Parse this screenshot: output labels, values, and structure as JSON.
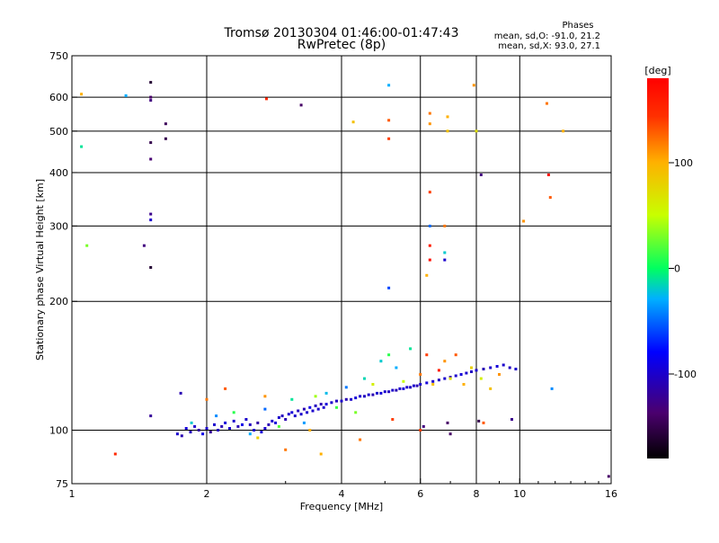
{
  "header": {
    "title_line1": "Tromsø 20130304 01:46:00-01:47:43",
    "title_line2": "RwPretec (8p)",
    "phases_title": "Phases",
    "phases_o": "mean, sd,O: -91.0, 21.2",
    "phases_x": "mean, sd,X:  93.0, 27.1"
  },
  "colorbar": {
    "label": "[deg]",
    "min": -180,
    "max": 180,
    "ticks": [
      {
        "value": 100,
        "label": "100"
      },
      {
        "value": 0,
        "label": "0"
      },
      {
        "value": -100,
        "label": "-100"
      }
    ]
  },
  "chart_data": {
    "type": "scatter",
    "xlabel": "Frequency [MHz]",
    "ylabel": "Stationary phase Virtual Height [km]",
    "xscale": "log",
    "yscale": "log",
    "xlim": [
      1,
      16
    ],
    "ylim": [
      75,
      750
    ],
    "grid": true,
    "x_ticks": [
      {
        "value": 1,
        "label": "1"
      },
      {
        "value": 2,
        "label": "2"
      },
      {
        "value": 4,
        "label": "4"
      },
      {
        "value": 6,
        "label": "6"
      },
      {
        "value": 8,
        "label": "8"
      },
      {
        "value": 10,
        "label": "10"
      },
      {
        "value": 16,
        "label": "16"
      }
    ],
    "y_ticks": [
      {
        "value": 75,
        "label": "75"
      },
      {
        "value": 100,
        "label": "100"
      },
      {
        "value": 200,
        "label": "200"
      },
      {
        "value": 300,
        "label": "300"
      },
      {
        "value": 400,
        "label": "400"
      },
      {
        "value": 500,
        "label": "500"
      },
      {
        "value": 600,
        "label": "600"
      },
      {
        "value": 750,
        "label": "750"
      }
    ],
    "points": [
      [
        1.72,
        98,
        -100
      ],
      [
        1.76,
        97,
        -110
      ],
      [
        1.8,
        101,
        -95
      ],
      [
        1.84,
        99,
        -105
      ],
      [
        1.88,
        102,
        -100
      ],
      [
        1.92,
        100,
        -115
      ],
      [
        1.96,
        98,
        -90
      ],
      [
        2.0,
        101,
        -100
      ],
      [
        2.04,
        99,
        -120
      ],
      [
        2.08,
        103,
        -100
      ],
      [
        2.12,
        100,
        -105
      ],
      [
        2.16,
        102,
        -110
      ],
      [
        2.2,
        104,
        -95
      ],
      [
        2.25,
        101,
        -100
      ],
      [
        2.3,
        105,
        -100
      ],
      [
        2.35,
        102,
        -110
      ],
      [
        2.4,
        103,
        -90
      ],
      [
        2.45,
        106,
        -100
      ],
      [
        2.5,
        103,
        -105
      ],
      [
        2.55,
        100,
        -100
      ],
      [
        2.6,
        104,
        -115
      ],
      [
        2.65,
        99,
        -95
      ],
      [
        2.7,
        101,
        -100
      ],
      [
        2.75,
        103,
        -110
      ],
      [
        2.8,
        105,
        -100
      ],
      [
        2.85,
        104,
        -95
      ],
      [
        2.9,
        107,
        -100
      ],
      [
        2.95,
        108,
        -105
      ],
      [
        3.0,
        106,
        -110
      ],
      [
        3.05,
        109,
        -100
      ],
      [
        3.1,
        110,
        -95
      ],
      [
        3.15,
        108,
        -100
      ],
      [
        3.2,
        111,
        -105
      ],
      [
        3.25,
        109,
        -100
      ],
      [
        3.3,
        112,
        -110
      ],
      [
        3.35,
        110,
        -100
      ],
      [
        3.4,
        113,
        -90
      ],
      [
        3.45,
        111,
        -100
      ],
      [
        3.5,
        114,
        -105
      ],
      [
        3.55,
        112,
        -100
      ],
      [
        3.6,
        115,
        -110
      ],
      [
        3.65,
        113,
        -100
      ],
      [
        3.7,
        115,
        -95
      ],
      [
        3.8,
        116,
        -100
      ],
      [
        3.9,
        117,
        -105
      ],
      [
        4.0,
        117,
        -100
      ],
      [
        4.1,
        118,
        -110
      ],
      [
        4.2,
        118,
        -100
      ],
      [
        4.3,
        119,
        -95
      ],
      [
        4.4,
        120,
        -100
      ],
      [
        4.5,
        120,
        -105
      ],
      [
        4.6,
        121,
        -100
      ],
      [
        4.7,
        121,
        -110
      ],
      [
        4.8,
        122,
        -100
      ],
      [
        4.9,
        122,
        -95
      ],
      [
        5.0,
        123,
        -100
      ],
      [
        5.1,
        123,
        -105
      ],
      [
        5.2,
        124,
        -100
      ],
      [
        5.3,
        124,
        -110
      ],
      [
        5.4,
        125,
        -100
      ],
      [
        5.5,
        125,
        -95
      ],
      [
        5.6,
        126,
        -100
      ],
      [
        5.7,
        126,
        -105
      ],
      [
        5.8,
        127,
        -100
      ],
      [
        5.9,
        127,
        -110
      ],
      [
        6.0,
        128,
        -100
      ],
      [
        6.2,
        129,
        -95
      ],
      [
        6.4,
        130,
        -100
      ],
      [
        6.6,
        131,
        -105
      ],
      [
        6.8,
        132,
        -100
      ],
      [
        7.0,
        133,
        -110
      ],
      [
        7.2,
        134,
        -100
      ],
      [
        7.4,
        135,
        -95
      ],
      [
        7.6,
        136,
        -100
      ],
      [
        7.8,
        137,
        -105
      ],
      [
        8.0,
        138,
        -100
      ],
      [
        8.3,
        139,
        -110
      ],
      [
        8.6,
        140,
        -100
      ],
      [
        8.9,
        141,
        -95
      ],
      [
        9.2,
        142,
        -100
      ],
      [
        9.5,
        140,
        -105
      ],
      [
        9.8,
        139,
        -100
      ],
      [
        1.85,
        104,
        -20
      ],
      [
        2.1,
        108,
        -40
      ],
      [
        2.3,
        110,
        10
      ],
      [
        2.5,
        98,
        -30
      ],
      [
        2.7,
        112,
        -50
      ],
      [
        2.9,
        102,
        20
      ],
      [
        3.1,
        118,
        -10
      ],
      [
        3.3,
        104,
        -35
      ],
      [
        3.5,
        120,
        40
      ],
      [
        3.7,
        122,
        -25
      ],
      [
        3.9,
        113,
        15
      ],
      [
        4.1,
        126,
        -45
      ],
      [
        4.3,
        110,
        30
      ],
      [
        4.5,
        132,
        -15
      ],
      [
        4.7,
        128,
        60
      ],
      [
        4.9,
        145,
        -20
      ],
      [
        5.1,
        150,
        10
      ],
      [
        5.3,
        140,
        -30
      ],
      [
        5.5,
        130,
        50
      ],
      [
        5.7,
        155,
        -10
      ],
      [
        6.0,
        135,
        120
      ],
      [
        6.2,
        150,
        140
      ],
      [
        6.4,
        128,
        90
      ],
      [
        6.6,
        138,
        160
      ],
      [
        6.8,
        145,
        110
      ],
      [
        7.0,
        132,
        70
      ],
      [
        7.2,
        150,
        130
      ],
      [
        7.5,
        128,
        100
      ],
      [
        7.8,
        140,
        80
      ],
      [
        8.2,
        132,
        60
      ],
      [
        8.6,
        125,
        90
      ],
      [
        9.0,
        135,
        110
      ],
      [
        2.6,
        96,
        80
      ],
      [
        3.4,
        100,
        100
      ],
      [
        4.4,
        95,
        120
      ],
      [
        5.2,
        106,
        140
      ],
      [
        6.1,
        102,
        -130
      ],
      [
        6.9,
        104,
        -140
      ],
      [
        8.1,
        105,
        -150
      ],
      [
        9.6,
        106,
        -125
      ],
      [
        1.05,
        610,
        100
      ],
      [
        1.05,
        460,
        -10
      ],
      [
        1.08,
        270,
        30
      ],
      [
        1.32,
        605,
        -30
      ],
      [
        1.5,
        650,
        -160
      ],
      [
        1.5,
        600,
        -140
      ],
      [
        1.5,
        590,
        -130
      ],
      [
        1.5,
        470,
        -150
      ],
      [
        1.5,
        430,
        -135
      ],
      [
        1.5,
        320,
        -125
      ],
      [
        1.5,
        310,
        -100
      ],
      [
        1.62,
        520,
        -145
      ],
      [
        1.62,
        480,
        -150
      ],
      [
        1.45,
        270,
        -130
      ],
      [
        1.5,
        240,
        -160
      ],
      [
        2.72,
        595,
        150
      ],
      [
        3.25,
        575,
        -140
      ],
      [
        4.25,
        525,
        90
      ],
      [
        5.1,
        640,
        -30
      ],
      [
        5.1,
        530,
        130
      ],
      [
        5.1,
        480,
        140
      ],
      [
        6.3,
        550,
        120
      ],
      [
        6.3,
        520,
        110
      ],
      [
        6.9,
        540,
        100
      ],
      [
        6.9,
        500,
        90
      ],
      [
        7.9,
        640,
        110
      ],
      [
        8.0,
        500,
        70
      ],
      [
        8.2,
        395,
        -130
      ],
      [
        6.3,
        360,
        140
      ],
      [
        6.3,
        270,
        160
      ],
      [
        6.3,
        300,
        -50
      ],
      [
        6.8,
        300,
        120
      ],
      [
        6.8,
        260,
        -20
      ],
      [
        6.8,
        250,
        -100
      ],
      [
        6.3,
        250,
        170
      ],
      [
        5.1,
        215,
        -60
      ],
      [
        6.2,
        230,
        100
      ],
      [
        11.5,
        580,
        120
      ],
      [
        12.5,
        500,
        100
      ],
      [
        11.6,
        395,
        170
      ],
      [
        11.7,
        350,
        130
      ],
      [
        10.2,
        308,
        110
      ],
      [
        11.8,
        125,
        -40
      ],
      [
        15.8,
        78,
        -140
      ],
      [
        1.25,
        88,
        150
      ],
      [
        1.5,
        108,
        -120
      ],
      [
        1.75,
        122,
        -110
      ],
      [
        2.0,
        118,
        120
      ],
      [
        2.2,
        125,
        130
      ],
      [
        2.7,
        120,
        110
      ],
      [
        3.0,
        90,
        120
      ],
      [
        3.6,
        88,
        100
      ],
      [
        6.0,
        100,
        140
      ],
      [
        7.0,
        98,
        -140
      ],
      [
        8.3,
        104,
        130
      ]
    ]
  }
}
